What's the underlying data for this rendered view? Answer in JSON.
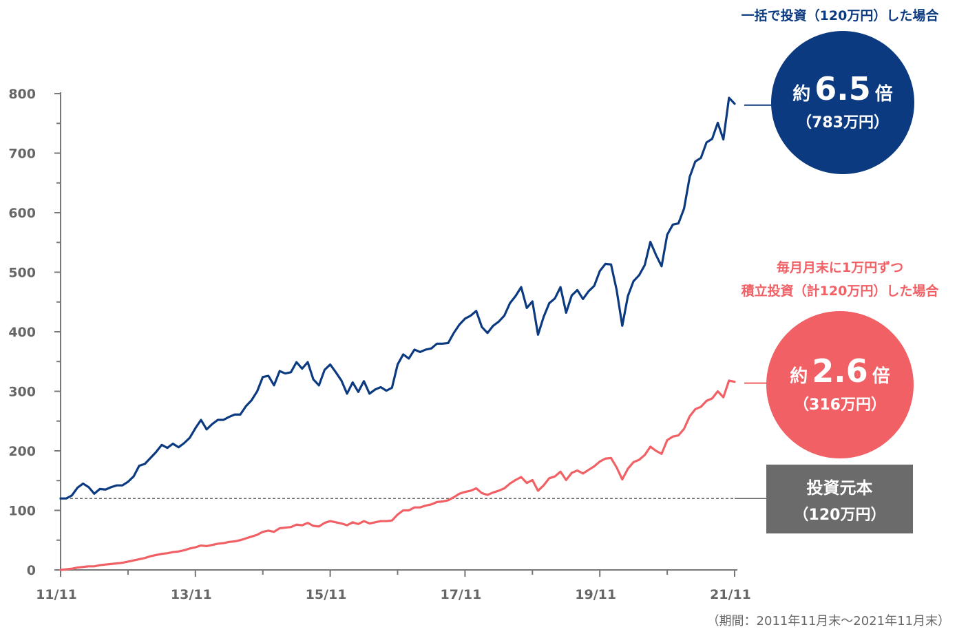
{
  "chart_data": {
    "type": "line",
    "ylim": [
      0,
      800
    ],
    "yticks": [
      0,
      100,
      200,
      300,
      400,
      500,
      600,
      700,
      800
    ],
    "xticks": [
      "11/11",
      "13/11",
      "15/11",
      "17/11",
      "19/11",
      "21/11"
    ],
    "xrange": [
      "2011-11",
      "2021-11"
    ],
    "reference_line": {
      "value": 120,
      "style": "dashed"
    },
    "series": [
      {
        "name": "一括で投資（120万円）した場合",
        "color": "#0b3a80",
        "values": [
          120,
          120,
          125,
          138,
          145,
          139,
          128,
          136,
          135,
          139,
          142,
          142,
          148,
          157,
          175,
          178,
          188,
          198,
          210,
          205,
          212,
          206,
          213,
          222,
          238,
          252,
          236,
          245,
          252,
          252,
          257,
          261,
          261,
          275,
          285,
          300,
          324,
          326,
          310,
          334,
          330,
          332,
          349,
          338,
          349,
          320,
          310,
          336,
          345,
          332,
          318,
          296,
          315,
          299,
          317,
          296,
          303,
          307,
          301,
          306,
          345,
          362,
          355,
          370,
          366,
          370,
          372,
          380,
          380,
          381,
          398,
          412,
          422,
          427,
          435,
          408,
          398,
          410,
          417,
          427,
          448,
          460,
          475,
          440,
          451,
          395,
          425,
          448,
          456,
          475,
          432,
          461,
          470,
          455,
          468,
          477,
          502,
          514,
          513,
          470,
          410,
          460,
          485,
          495,
          512,
          551,
          529,
          510,
          563,
          580,
          582,
          607,
          660,
          686,
          692,
          718,
          724,
          751,
          723,
          793,
          783
        ]
      },
      {
        "name": "毎月月末に1万円ずつ積立投資（計120万円）した場合",
        "color": "#f06065",
        "values": [
          0,
          1,
          2,
          4,
          5,
          6,
          6,
          8,
          9,
          10,
          11,
          12,
          14,
          16,
          18,
          20,
          23,
          25,
          27,
          28,
          30,
          31,
          33,
          36,
          38,
          41,
          40,
          42,
          44,
          45,
          47,
          48,
          50,
          53,
          56,
          59,
          64,
          66,
          64,
          70,
          71,
          72,
          76,
          75,
          79,
          74,
          73,
          79,
          82,
          80,
          78,
          75,
          80,
          77,
          82,
          78,
          80,
          82,
          82,
          83,
          93,
          100,
          100,
          105,
          105,
          108,
          110,
          114,
          115,
          117,
          122,
          128,
          131,
          133,
          137,
          129,
          126,
          130,
          133,
          137,
          145,
          151,
          156,
          146,
          151,
          133,
          142,
          154,
          157,
          165,
          151,
          163,
          167,
          162,
          168,
          174,
          182,
          187,
          188,
          172,
          152,
          170,
          181,
          185,
          193,
          207,
          200,
          195,
          218,
          224,
          226,
          237,
          258,
          270,
          274,
          284,
          288,
          300,
          290,
          318,
          316
        ]
      }
    ]
  },
  "labels": {
    "lump_title": "一括で投資（120万円）した場合",
    "lump_prefix": "約",
    "lump_multiple": "6.5",
    "lump_suffix": "倍",
    "lump_amount": "（783万円）",
    "dca_title_1": "毎月月末に1万円ずつ",
    "dca_title_2": "積立投資（計120万円）した場合",
    "dca_prefix": "約",
    "dca_multiple": "2.6",
    "dca_suffix": "倍",
    "dca_amount": "（316万円）",
    "principal_title": "投資元本",
    "principal_amount": "（120万円）",
    "period_note": "（期間：2011年11月末〜2021年11月末）"
  },
  "colors": {
    "lump": "#0b3a80",
    "dca": "#f06065",
    "principal": "#6b6b6b",
    "axis": "#777777"
  }
}
